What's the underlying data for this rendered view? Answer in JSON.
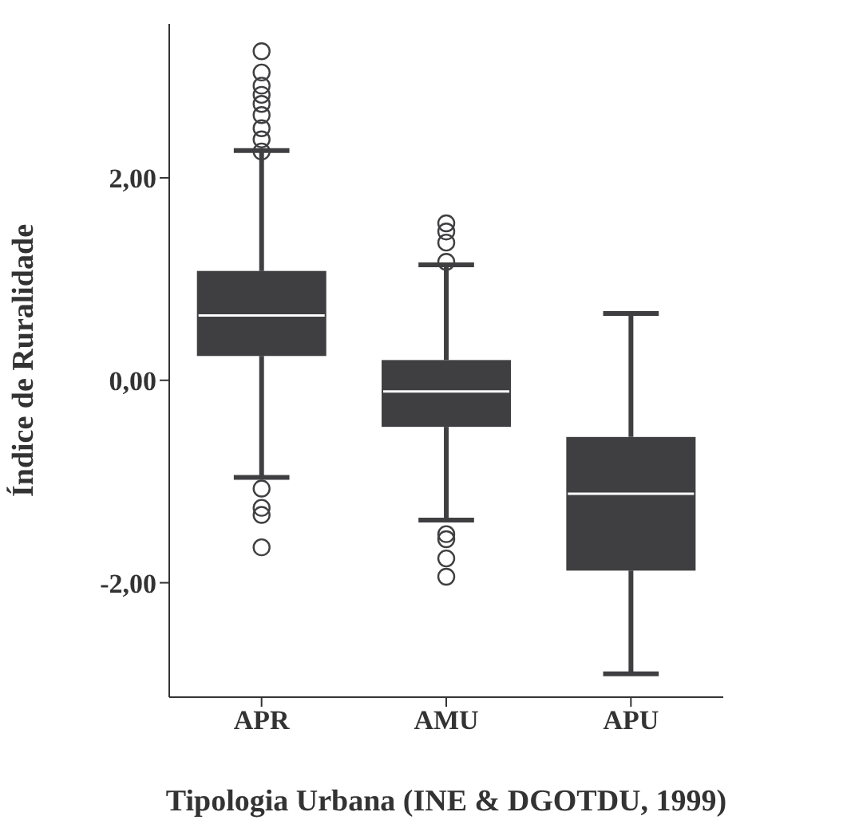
{
  "chart_data": {
    "type": "box",
    "xlabel": "Tipologia Urbana (INE & DGOTDU, 1999)",
    "ylabel": "Índice de Ruralidade",
    "categories": [
      "APR",
      "AMU",
      "APU"
    ],
    "color": "#3f3f42",
    "ylim": [
      -3.13,
      3.52
    ],
    "yticks": [
      {
        "value": -2,
        "label": "-2,00"
      },
      {
        "value": 0,
        "label": "0,00"
      },
      {
        "value": 2,
        "label": "2,00"
      }
    ],
    "grid": false,
    "boxes": [
      {
        "low": -0.96,
        "q1": 0.24,
        "median": 0.64,
        "q3": 1.08,
        "high": 2.27,
        "outliers": [
          3.25,
          3.04,
          2.91,
          2.82,
          2.73,
          2.62,
          2.49,
          2.38,
          2.26,
          -1.07,
          -1.26,
          -1.33,
          -1.65
        ]
      },
      {
        "low": -1.38,
        "q1": -0.46,
        "median": -0.11,
        "q3": 0.2,
        "high": 1.14,
        "outliers": [
          1.55,
          1.47,
          1.36,
          1.17,
          -1.52,
          -1.57,
          -1.76,
          -1.94
        ]
      },
      {
        "low": -2.9,
        "q1": -1.88,
        "median": -1.12,
        "q3": -0.56,
        "high": 0.66
      }
    ]
  }
}
